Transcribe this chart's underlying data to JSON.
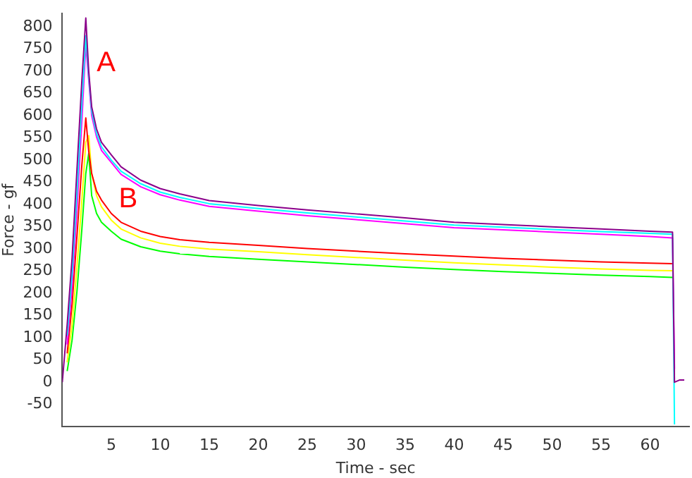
{
  "chart_data": {
    "type": "line",
    "xlabel": "Time - sec",
    "ylabel": "Force - gf",
    "xlim": [
      0,
      64
    ],
    "ylim": [
      -100,
      830
    ],
    "xticks": [
      5,
      10,
      15,
      20,
      25,
      30,
      35,
      40,
      45,
      50,
      55,
      60
    ],
    "yticks": [
      -50,
      0,
      50,
      100,
      150,
      200,
      250,
      300,
      350,
      400,
      450,
      500,
      550,
      600,
      650,
      700,
      750,
      800
    ],
    "grid": false,
    "legend": false,
    "marker": "none",
    "line_style": "solid",
    "annotations": [
      "A",
      "B"
    ],
    "x": [
      0,
      0.5,
      1,
      1.5,
      2,
      2.4,
      2.7,
      3,
      3.5,
      4,
      5,
      6,
      8,
      10,
      12,
      15,
      20,
      25,
      30,
      35,
      40,
      45,
      50,
      55,
      60,
      62.3,
      62.5,
      63,
      63.5
    ],
    "series": [
      {
        "color": "#8b008b",
        "values": [
          0,
          130,
          280,
          480,
          680,
          820,
          700,
          620,
          570,
          540,
          512,
          485,
          455,
          436,
          424,
          409,
          398,
          388,
          379,
          370,
          360,
          355,
          350,
          345,
          340,
          338,
          0,
          5,
          5
        ]
      },
      {
        "color": "#00ffff",
        "values": [
          null,
          105,
          245,
          430,
          630,
          780,
          690,
          610,
          560,
          530,
          500,
          475,
          447,
          428,
          416,
          402,
          391,
          381,
          372,
          363,
          354,
          349,
          344,
          339,
          335,
          333,
          -95,
          null,
          null
        ]
      },
      {
        "color": "#ff00ff",
        "values": [
          null,
          85,
          215,
          390,
          590,
          760,
          680,
          600,
          552,
          522,
          495,
          468,
          440,
          422,
          410,
          396,
          385,
          375,
          366,
          357,
          348,
          343,
          338,
          333,
          328,
          325,
          30,
          null,
          null
        ]
      },
      {
        "color": "#ff0000",
        "values": [
          null,
          65,
          175,
          330,
          490,
          595,
          520,
          470,
          430,
          410,
          380,
          360,
          340,
          328,
          321,
          315,
          308,
          301,
          295,
          289,
          284,
          279,
          275,
          271,
          268,
          267,
          null,
          null,
          null
        ]
      },
      {
        "color": "#ffff00",
        "values": [
          null,
          45,
          130,
          260,
          410,
          540,
          555,
          470,
          420,
          395,
          365,
          345,
          325,
          313,
          306,
          300,
          294,
          287,
          281,
          275,
          269,
          264,
          259,
          255,
          252,
          251,
          null,
          null,
          null
        ]
      },
      {
        "color": "#00ff00",
        "values": [
          null,
          25,
          95,
          205,
          345,
          470,
          515,
          420,
          380,
          360,
          340,
          322,
          305,
          295,
          289,
          283,
          277,
          271,
          265,
          259,
          254,
          249,
          245,
          241,
          238,
          236,
          null,
          null,
          null
        ]
      }
    ]
  }
}
